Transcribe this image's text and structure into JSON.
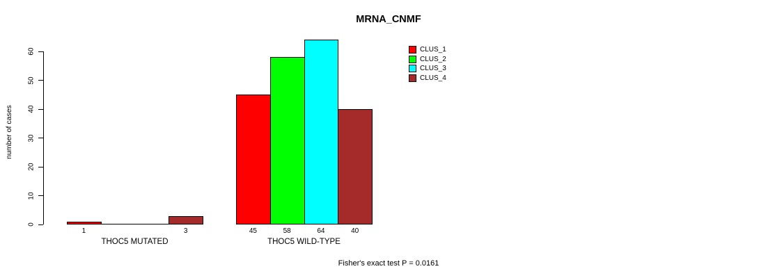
{
  "chart_data": {
    "type": "bar",
    "title": "MRNA_CNMF",
    "ylabel": "number of cases",
    "xlabel": "",
    "ylim": [
      0,
      60
    ],
    "yticks": [
      0,
      10,
      20,
      30,
      40,
      50,
      60
    ],
    "grid": false,
    "legend_position": "top-right",
    "series": [
      "CLUS_1",
      "CLUS_2",
      "CLUS_3",
      "CLUS_4"
    ],
    "colors": [
      "#ff0000",
      "#00ff00",
      "#00ffff",
      "#a52a2a"
    ],
    "groups": [
      {
        "label": "THOC5 MUTATED",
        "values": [
          1,
          0,
          0,
          3
        ]
      },
      {
        "label": "THOC5 WILD-TYPE",
        "values": [
          45,
          58,
          64,
          40
        ]
      }
    ],
    "value_label_rule": "shown under each bar when value > 0",
    "annotation": "Fisher's exact test P = 0.0161"
  },
  "legend": {
    "items": [
      {
        "label": "CLUS_1",
        "color": "#ff0000"
      },
      {
        "label": "CLUS_2",
        "color": "#00ff00"
      },
      {
        "label": "CLUS_3",
        "color": "#00ffff"
      },
      {
        "label": "CLUS_4",
        "color": "#a52a2a"
      }
    ]
  },
  "colors": {
    "background": "#ffffff",
    "axis": "#000000",
    "text": "#000000"
  }
}
